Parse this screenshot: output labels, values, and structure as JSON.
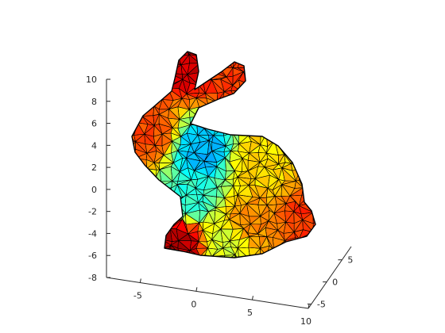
{
  "chart_data": {
    "type": "surface",
    "subtype": "triangulated mesh (trisurf) of the Stanford bunny, colored by a scalar field",
    "title": "",
    "xlabel": "",
    "ylabel": "",
    "zlabel": "",
    "grid": false,
    "colormap": "jet",
    "colormap_stops": [
      "#00008f",
      "#0000ff",
      "#00ffff",
      "#80ff80",
      "#ffff00",
      "#ff8000",
      "#ff0000",
      "#800000"
    ],
    "edge_color": "#000000",
    "x_axis": {
      "ticks": [
        -5,
        0,
        5,
        10
      ],
      "tick_labels": [
        "-5",
        "0",
        "5",
        "10"
      ],
      "range": [
        -8,
        10
      ]
    },
    "y_axis": {
      "ticks": [
        -5,
        0,
        5
      ],
      "tick_labels": [
        "-5",
        "0",
        "5"
      ],
      "range": [
        -6,
        8
      ]
    },
    "z_axis": {
      "ticks": [
        -8,
        -6,
        -4,
        -2,
        0,
        2,
        4,
        6,
        8,
        10
      ],
      "tick_labels": [
        "-8",
        "-6",
        "-4",
        "-2",
        "0",
        "2",
        "4",
        "6",
        "8",
        "10"
      ],
      "range": [
        -8,
        10
      ]
    },
    "regions": [
      {
        "part": "left ear tip",
        "color_value": 0.92
      },
      {
        "part": "right ear",
        "color_value": 0.82
      },
      {
        "part": "snout",
        "color_value": 0.8
      },
      {
        "part": "neck",
        "color_value": 0.3
      },
      {
        "part": "chest",
        "color_value": 0.42
      },
      {
        "part": "back",
        "color_value": 0.66
      },
      {
        "part": "haunch",
        "color_value": 0.74
      },
      {
        "part": "tail",
        "color_value": 0.82
      },
      {
        "part": "front feet",
        "color_value": 0.95
      },
      {
        "part": "belly",
        "color_value": 0.58
      }
    ]
  }
}
